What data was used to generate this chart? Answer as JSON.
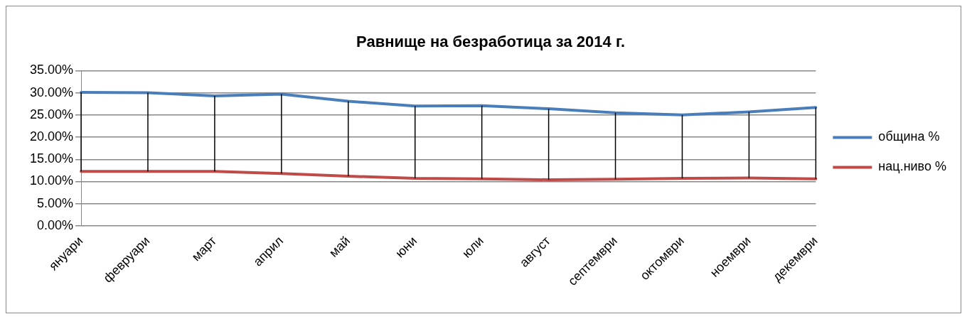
{
  "chart_data": {
    "type": "line",
    "title": "Равнище на безработица за 2014 г.",
    "categories": [
      "януари",
      "февруари",
      "март",
      "април",
      "май",
      "юни",
      "юли",
      "август",
      "септември",
      "октомври",
      "ноември",
      "декември"
    ],
    "series": [
      {
        "name": "община %",
        "color": "#4a7ebb",
        "values": [
          30.1,
          30.0,
          29.3,
          29.7,
          28.1,
          27.0,
          27.1,
          26.4,
          25.5,
          25.0,
          25.7,
          26.7
        ],
        "errors": [
          [
            12.3,
            30.1
          ],
          [
            12.3,
            30.0
          ],
          [
            12.3,
            29.3
          ],
          [
            11.8,
            29.7
          ],
          [
            11.2,
            28.1
          ],
          [
            10.7,
            27.0
          ],
          [
            10.6,
            27.1
          ],
          [
            10.4,
            26.4
          ],
          [
            10.5,
            25.5
          ],
          [
            10.7,
            25.0
          ],
          [
            10.8,
            25.7
          ],
          [
            10.6,
            26.7
          ]
        ]
      },
      {
        "name": "нац.ниво %",
        "color": "#be4b48",
        "values": [
          12.3,
          12.3,
          12.3,
          11.8,
          11.2,
          10.7,
          10.6,
          10.4,
          10.5,
          10.7,
          10.8,
          10.6
        ]
      }
    ],
    "ylim": [
      0,
      35
    ],
    "yticks": [
      {
        "value": 0,
        "label": "0.00%"
      },
      {
        "value": 5,
        "label": "5.00%"
      },
      {
        "value": 10,
        "label": "10.00%"
      },
      {
        "value": 15,
        "label": "15.00%"
      },
      {
        "value": 20,
        "label": "20.00%"
      },
      {
        "value": 25,
        "label": "25.00%"
      },
      {
        "value": 30,
        "label": "30.00%"
      },
      {
        "value": 35,
        "label": "35.00%"
      }
    ],
    "grid": "y",
    "legend": "right",
    "marker": "none",
    "line_style": "solid"
  }
}
